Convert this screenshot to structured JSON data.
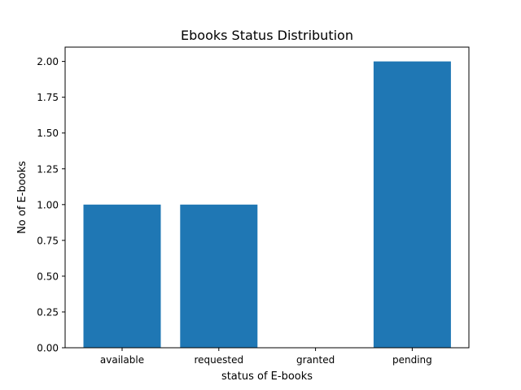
{
  "chart_data": {
    "type": "bar",
    "title": "Ebooks Status Distribution",
    "xlabel": "status of E-books",
    "ylabel": "No of E-books",
    "categories": [
      "available",
      "requested",
      "granted",
      "pending"
    ],
    "values": [
      1,
      1,
      0,
      2
    ],
    "ylim": [
      0,
      2.1
    ],
    "yticks": [
      "0.00",
      "0.25",
      "0.50",
      "0.75",
      "1.00",
      "1.25",
      "1.50",
      "1.75",
      "2.00"
    ],
    "bar_color": "#1f77b4",
    "grid": false,
    "legend": false
  }
}
